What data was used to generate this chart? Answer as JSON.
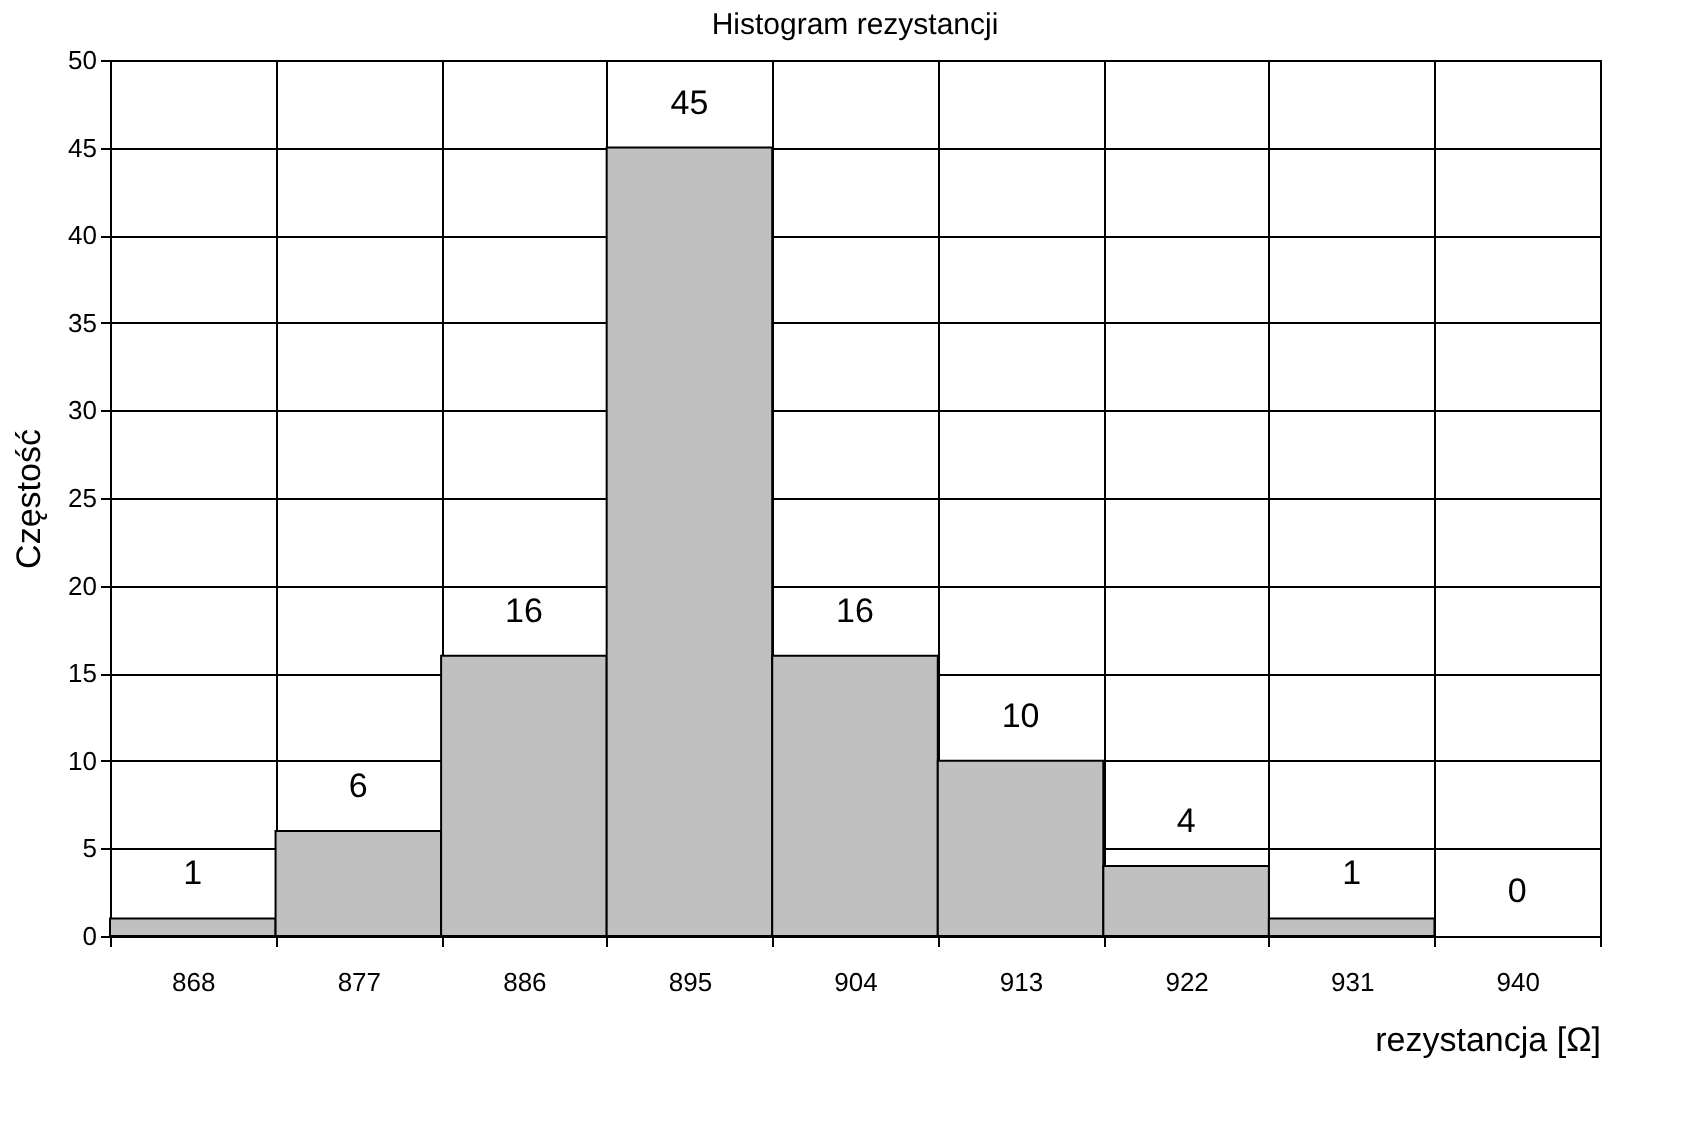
{
  "chart_data": {
    "type": "bar",
    "title": "Histogram rezystancji",
    "xlabel": "rezystancja [Ω]",
    "ylabel": "Częstość",
    "categories": [
      "868",
      "877",
      "886",
      "895",
      "904",
      "913",
      "922",
      "931",
      "940"
    ],
    "values": [
      1,
      6,
      16,
      45,
      16,
      10,
      4,
      1,
      0
    ],
    "color": "#c0c0c0",
    "ylim": [
      0,
      50
    ],
    "yticks": [
      0,
      5,
      10,
      15,
      20,
      25,
      30,
      35,
      40,
      45,
      50
    ],
    "grid": true,
    "data_labels": true
  }
}
